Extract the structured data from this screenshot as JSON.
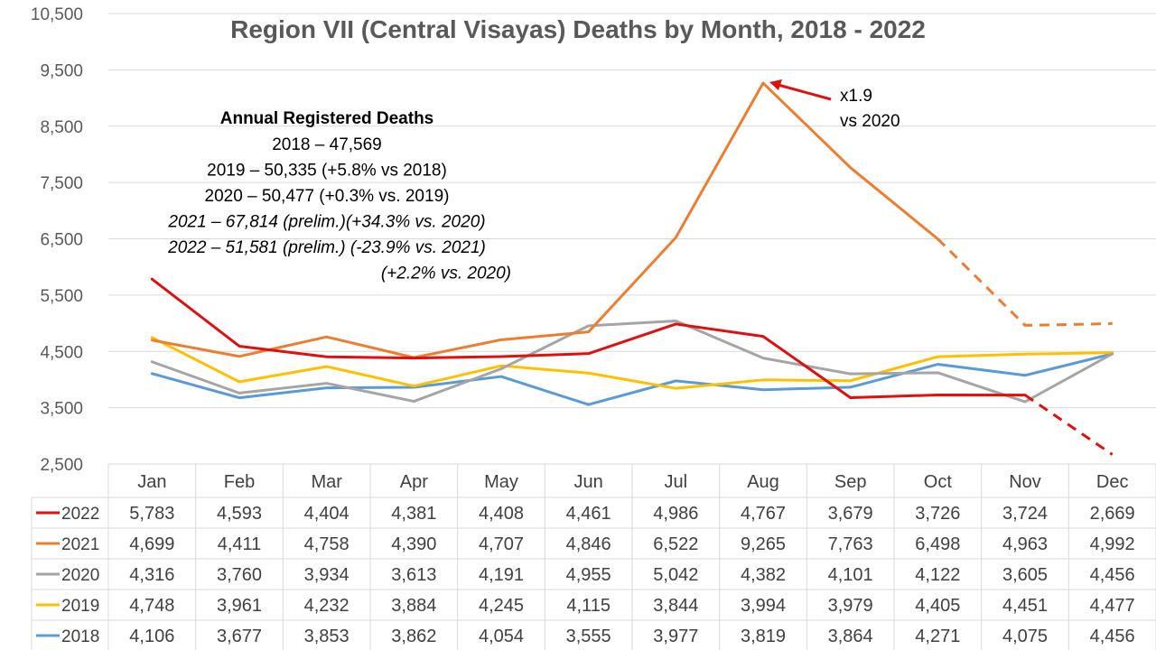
{
  "chart_data": {
    "type": "line",
    "title": "Region VII (Central Visayas) Deaths by Month, 2018 - 2022",
    "categories": [
      "Jan",
      "Feb",
      "Mar",
      "Apr",
      "May",
      "Jun",
      "Jul",
      "Aug",
      "Sep",
      "Oct",
      "Nov",
      "Dec"
    ],
    "ylim": [
      2500,
      10500
    ],
    "yticks": [
      "2,500",
      "3,500",
      "4,500",
      "5,500",
      "6,500",
      "7,500",
      "8,500",
      "9,500",
      "10,500"
    ],
    "ytick_values": [
      2500,
      3500,
      4500,
      5500,
      6500,
      7500,
      8500,
      9500,
      10500
    ],
    "grid": true,
    "legend": "data table below chart",
    "series": [
      {
        "name": "2022",
        "color": "#E01010",
        "dashed_from_index": 10,
        "values": [
          5783,
          4593,
          4404,
          4381,
          4408,
          4461,
          4986,
          4767,
          3679,
          3726,
          3724,
          2669
        ],
        "labels": [
          "5,783",
          "4,593",
          "4,404",
          "4,381",
          "4,408",
          "4,461",
          "4,986",
          "4,767",
          "3,679",
          "3,726",
          "3,724",
          "2,669"
        ]
      },
      {
        "name": "2021",
        "color": "#ED7D31",
        "dashed_from_index": 9,
        "values": [
          4699,
          4411,
          4758,
          4390,
          4707,
          4846,
          6522,
          9265,
          7763,
          6498,
          4963,
          4992
        ],
        "labels": [
          "4,699",
          "4,411",
          "4,758",
          "4,390",
          "4,707",
          "4,846",
          "6,522",
          "9,265",
          "7,763",
          "6,498",
          "4,963",
          "4,992"
        ]
      },
      {
        "name": "2020",
        "color": "#A5A5A5",
        "values": [
          4316,
          3760,
          3934,
          3613,
          4191,
          4955,
          5042,
          4382,
          4101,
          4122,
          3605,
          4456
        ],
        "labels": [
          "4,316",
          "3,760",
          "3,934",
          "3,613",
          "4,191",
          "4,955",
          "5,042",
          "4,382",
          "4,101",
          "4,122",
          "3,605",
          "4,456"
        ]
      },
      {
        "name": "2019",
        "color": "#FFC000",
        "values": [
          4748,
          3961,
          4232,
          3884,
          4245,
          4115,
          3844,
          3994,
          3979,
          4405,
          4451,
          4477
        ],
        "labels": [
          "4,748",
          "3,961",
          "4,232",
          "3,884",
          "4,245",
          "4,115",
          "3,844",
          "3,994",
          "3,979",
          "4,405",
          "4,451",
          "4,477"
        ]
      },
      {
        "name": "2018",
        "color": "#5B9BD5",
        "values": [
          4106,
          3677,
          3853,
          3862,
          4054,
          3555,
          3977,
          3819,
          3864,
          4271,
          4075,
          4456
        ],
        "labels": [
          "4,106",
          "3,677",
          "3,853",
          "3,862",
          "4,054",
          "3,555",
          "3,977",
          "3,819",
          "3,864",
          "4,271",
          "4,075",
          "4,456"
        ]
      }
    ],
    "annotations": {
      "peak_callout": [
        "x1.9",
        "vs 2020"
      ],
      "annual_box": {
        "heading": "Annual Registered Deaths",
        "lines": [
          {
            "text": "2018 – 47,569",
            "italic": false
          },
          {
            "text": "2019 – 50,335 (+5.8% vs 2018)",
            "italic": false
          },
          {
            "text": "2020 – 50,477 (+0.3% vs. 2019)",
            "italic": false
          },
          {
            "text": "2021 – 67,814 (prelim.)(+34.3% vs. 2020)",
            "italic": true
          },
          {
            "text": "2022 – 51,581 (prelim.) (-23.9% vs. 2021)",
            "italic": true
          },
          {
            "text": "(+2.2% vs. 2020)",
            "italic": true
          }
        ]
      }
    }
  }
}
